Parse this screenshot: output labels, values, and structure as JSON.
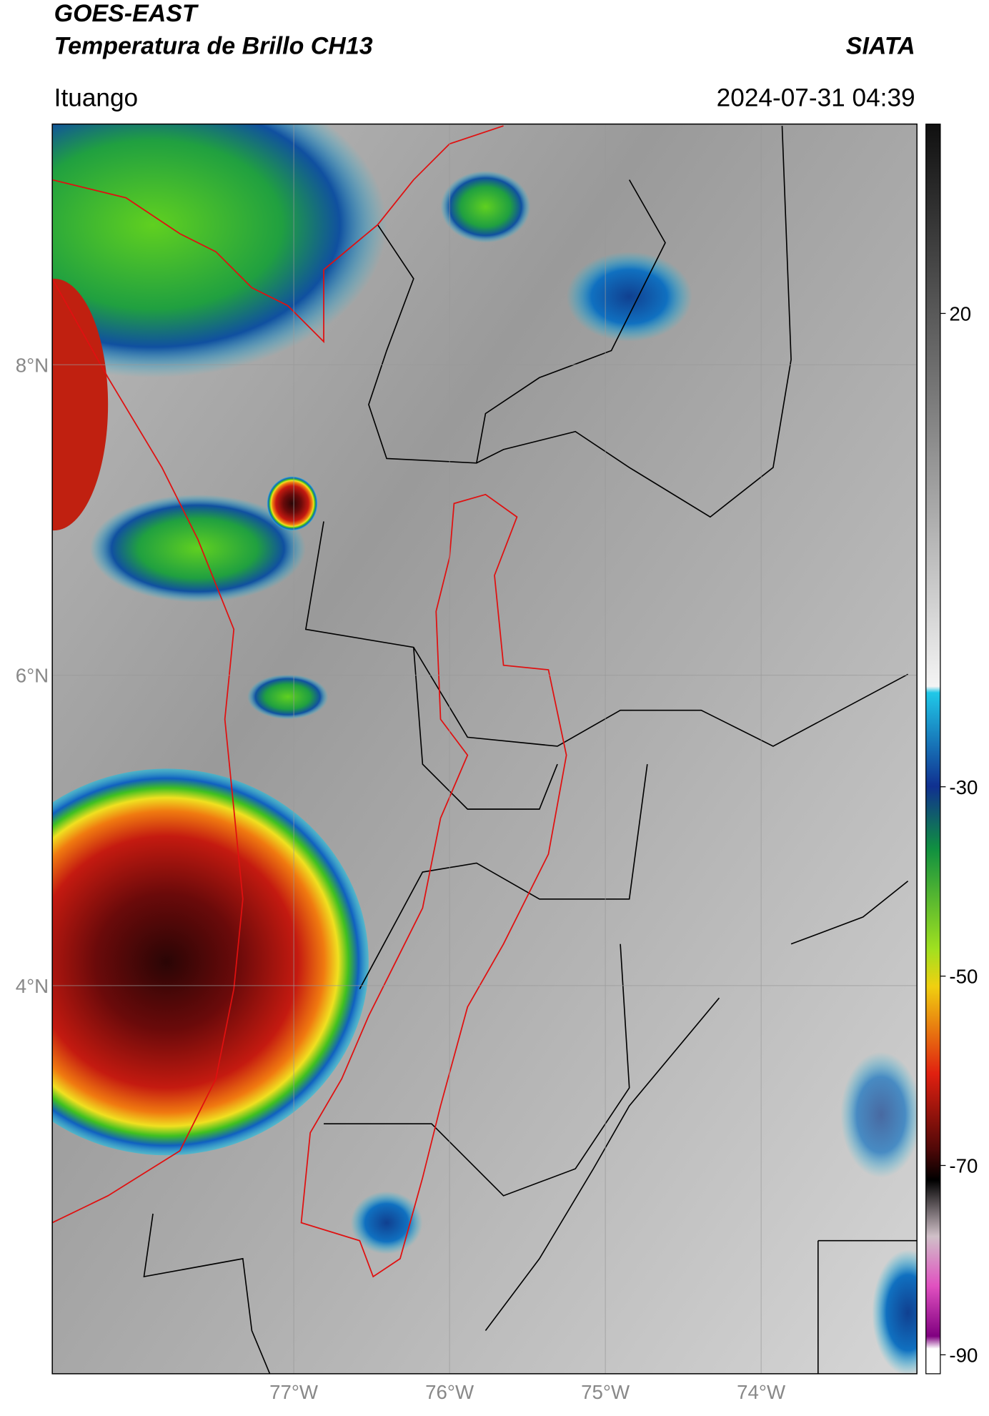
{
  "header": {
    "title_line1": "GOES-EAST",
    "title_line2": "Temperatura de Brillo CH13",
    "brand": "SIATA",
    "location": "Ituango",
    "datetime": "2024-07-31 04:39"
  },
  "map": {
    "lat_lim": [
      1.5,
      9.55
    ],
    "lon_lim": [
      -78.55,
      -73.0
    ],
    "lat_ticks": [
      {
        "value": 8,
        "label": "8°N"
      },
      {
        "value": 6,
        "label": "6°N"
      },
      {
        "value": 4,
        "label": "4°N"
      }
    ],
    "lon_ticks": [
      {
        "value": -77,
        "label": "77°W"
      },
      {
        "value": -76,
        "label": "76°W"
      },
      {
        "value": -75,
        "label": "75°W"
      },
      {
        "value": -74,
        "label": "74°W"
      }
    ]
  },
  "colorbar": {
    "lim": [
      -92,
      40
    ],
    "ticks": [
      20,
      -30,
      -50,
      -70,
      -90
    ]
  }
}
